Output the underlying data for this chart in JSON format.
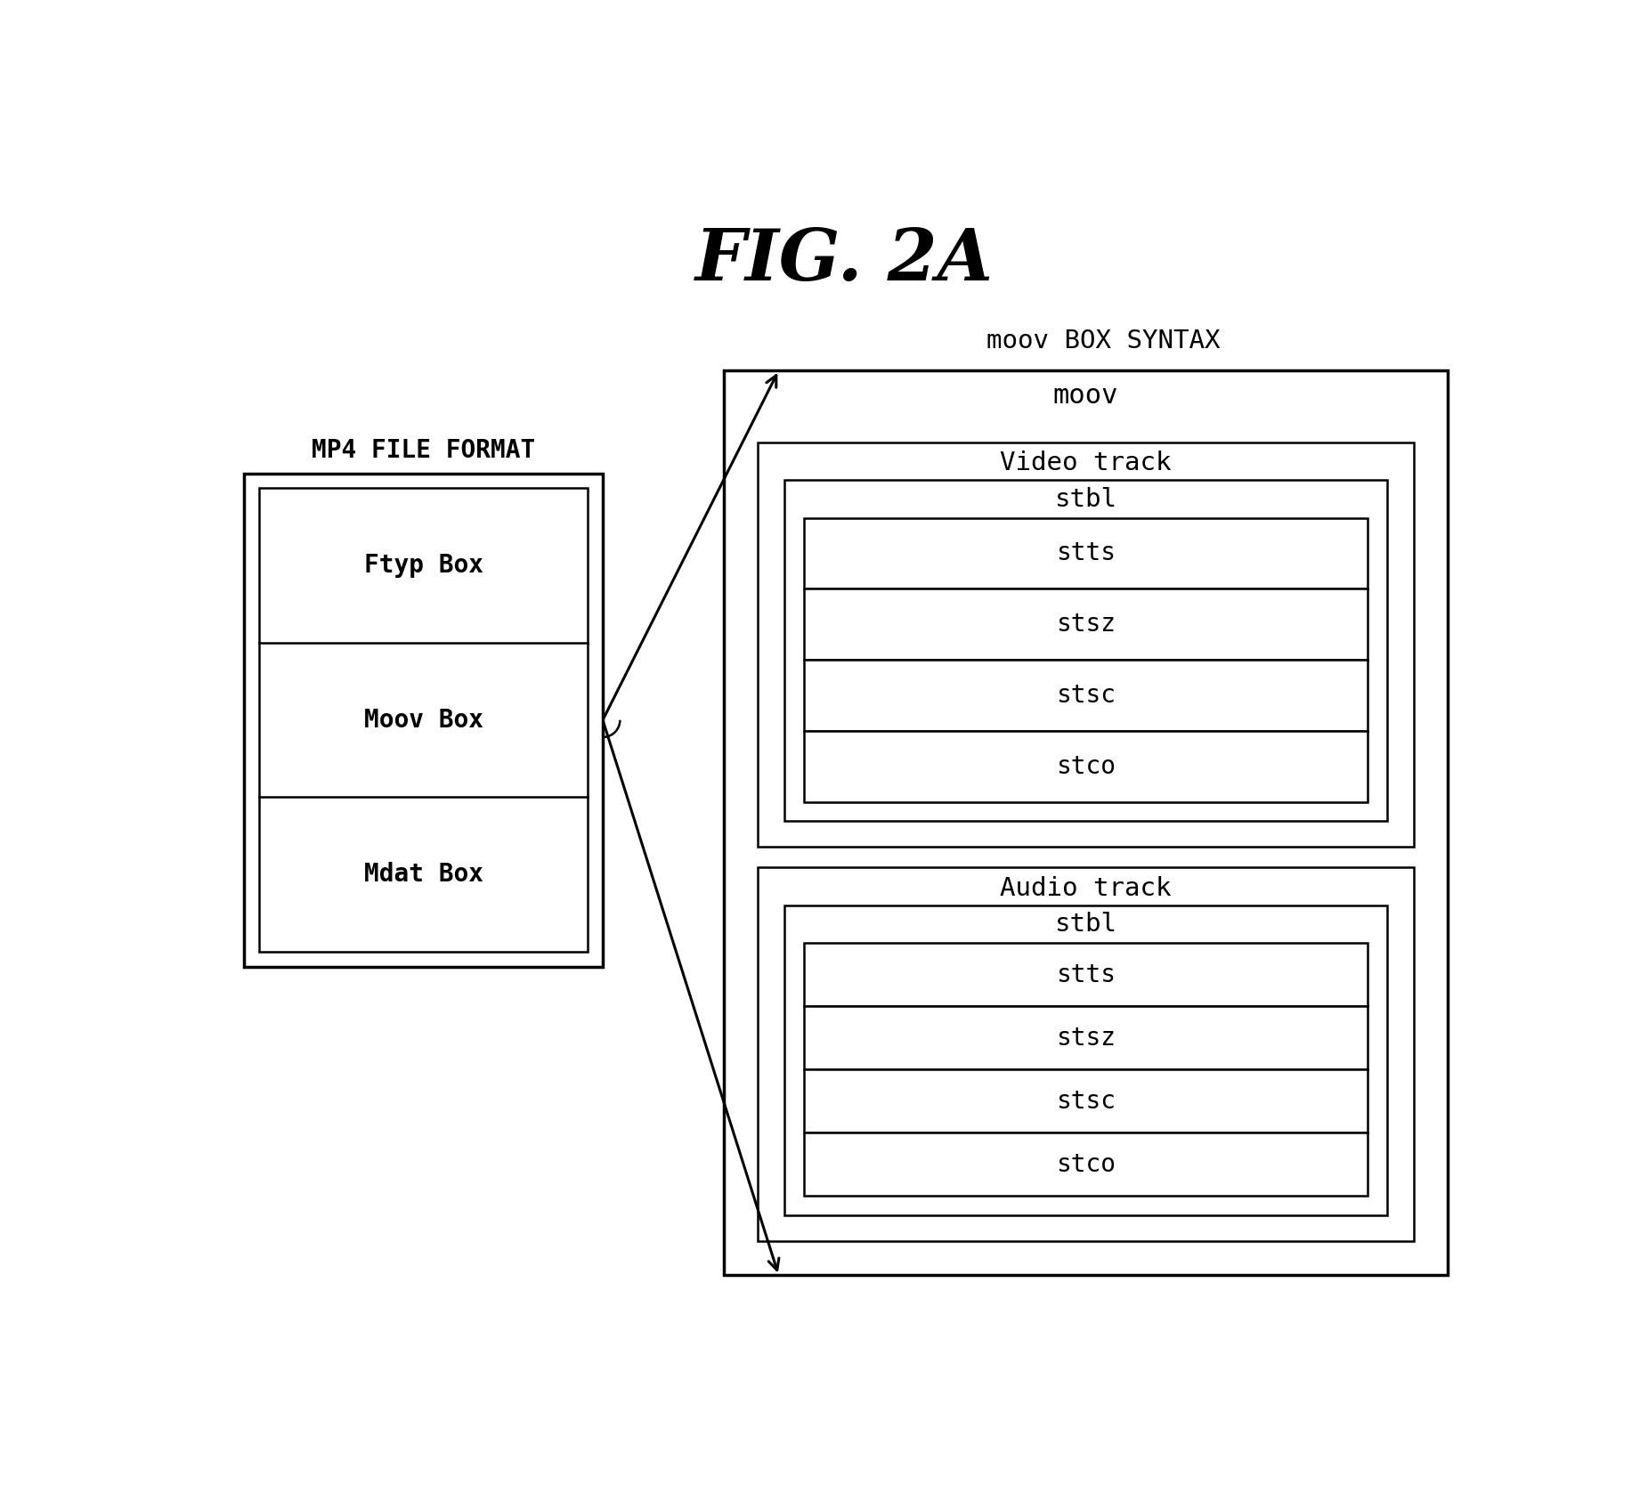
{
  "title": "FIG. 2A",
  "bg_color": "#ffffff",
  "text_color": "#000000",
  "mp4_label": "MP4 FILE FORMAT",
  "moov_syntax_label": "moov BOX SYNTAX",
  "mp4_boxes": [
    "Ftyp Box",
    "Moov Box",
    "Mdat Box"
  ],
  "moov_label": "moov",
  "video_track_label": "Video track",
  "audio_track_label": "Audio track",
  "stbl_label": "stbl",
  "video_inner_boxes": [
    "stts",
    "stsz",
    "stsc",
    "stco"
  ],
  "audio_inner_boxes": [
    "stts",
    "stsz",
    "stsc",
    "stco"
  ],
  "fig_width": 18.51,
  "fig_height": 16.96,
  "dpi": 100
}
